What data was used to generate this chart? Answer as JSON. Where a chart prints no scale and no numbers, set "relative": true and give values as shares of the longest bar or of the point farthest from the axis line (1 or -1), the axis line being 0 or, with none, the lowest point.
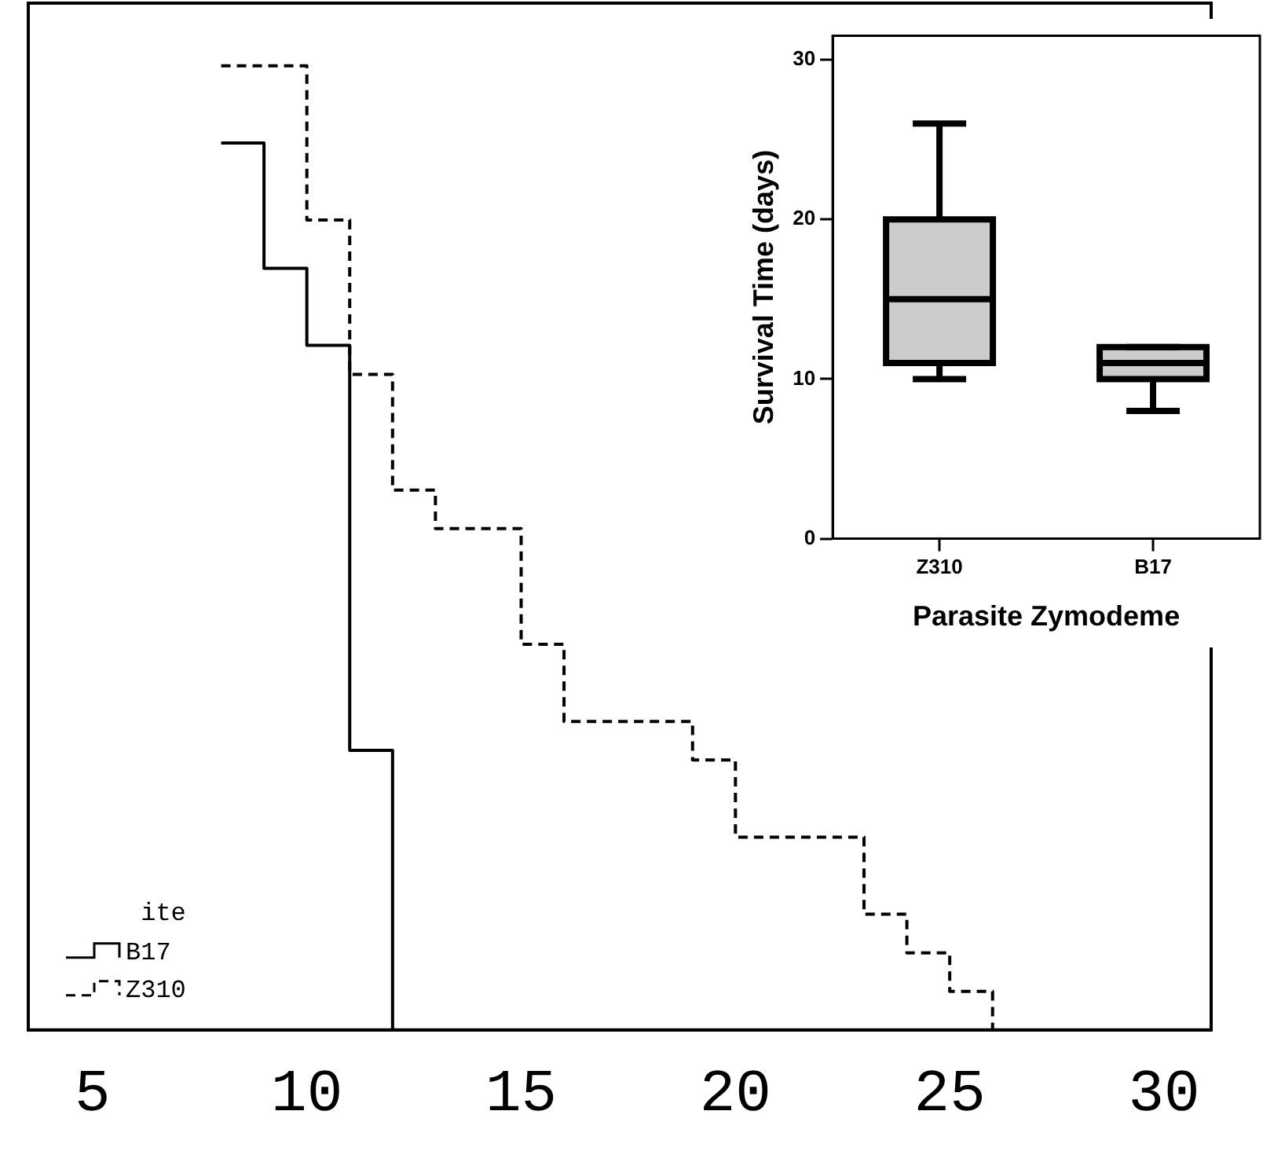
{
  "chart_data": [
    {
      "type": "step",
      "relative": true,
      "xlim": [
        3.5,
        31.1
      ],
      "xticks": [
        5,
        10,
        15,
        20,
        25,
        30
      ],
      "legend": "bottom left",
      "legend_title": "ite",
      "series": [
        {
          "name": "B17",
          "color": "#000000",
          "line_style": "solid",
          "x": [
            8,
            9,
            10,
            11,
            12
          ],
          "values": [
            0.92,
            0.79,
            0.71,
            0.29,
            0
          ]
        },
        {
          "name": "Z310",
          "color": "#000000",
          "line_style": "dashed",
          "x": [
            8,
            10,
            11,
            12,
            13,
            15,
            16,
            19,
            20,
            23,
            24,
            25,
            26
          ],
          "values": [
            1,
            0.84,
            0.68,
            0.56,
            0.52,
            0.4,
            0.32,
            0.28,
            0.2,
            0.12,
            0.08,
            0.04,
            0
          ]
        }
      ]
    },
    {
      "type": "box",
      "categories": [
        "Z310",
        "B17"
      ],
      "color": "#cccccc",
      "xlabel": "Parasite Zymodeme",
      "ylabel": "Survival Time (days)",
      "ylim": [
        0,
        31.5
      ],
      "yticks": [
        0,
        10,
        20,
        30
      ],
      "boxes": [
        {
          "low": 10,
          "q1": 11,
          "median": 15,
          "q3": 20,
          "high": 26
        },
        {
          "low": 8,
          "q1": 10,
          "median": 11,
          "q3": 12,
          "high": 12
        }
      ]
    }
  ]
}
